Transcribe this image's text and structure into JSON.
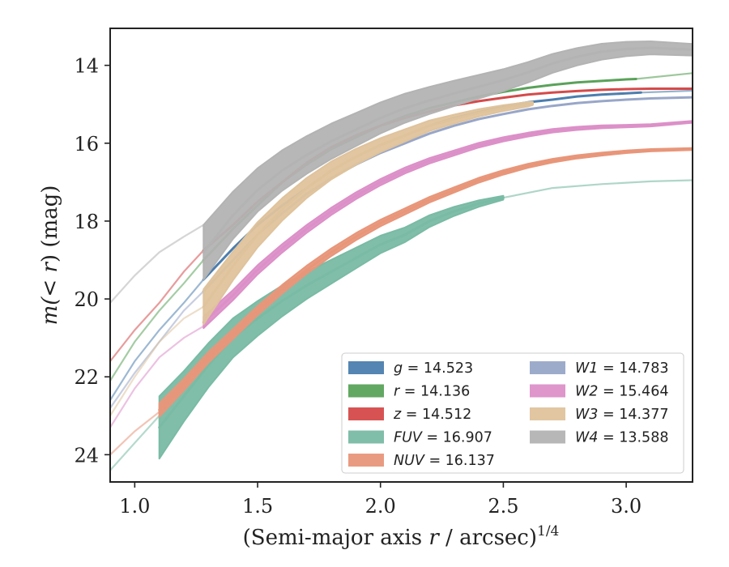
{
  "chart_data": {
    "type": "line",
    "xlabel": "(Semi-major axis r / arcsec)^1/4",
    "ylabel": "m(< r) (mag)",
    "xlim": [
      0.9,
      3.27
    ],
    "ylim": [
      24.7,
      13.05
    ],
    "y_inverted": true,
    "xticks": [
      "1.0",
      "1.5",
      "2.0",
      "2.5",
      "3.0"
    ],
    "yticks": [
      "14",
      "16",
      "18",
      "20",
      "22",
      "24"
    ],
    "legend_position": "lower-right",
    "legend_columns": 2,
    "series": [
      {
        "name": "g = 14.523",
        "band": "g",
        "mag_label": "14.523",
        "color": "#4c7eae",
        "faint": [
          [
            0.9,
            22.6
          ],
          [
            1.0,
            21.6
          ],
          [
            1.1,
            20.8
          ],
          [
            1.2,
            20.1
          ],
          [
            1.28,
            19.5
          ]
        ],
        "strong": [
          [
            1.28,
            19.5
          ],
          [
            1.4,
            18.7
          ],
          [
            1.5,
            18.1
          ],
          [
            1.6,
            17.6
          ],
          [
            1.7,
            17.15
          ],
          [
            1.8,
            16.7
          ],
          [
            1.9,
            16.35
          ],
          [
            2.0,
            16.05
          ],
          [
            2.1,
            15.8
          ],
          [
            2.2,
            15.55
          ],
          [
            2.3,
            15.35
          ],
          [
            2.4,
            15.2
          ],
          [
            2.5,
            15.05
          ],
          [
            2.6,
            14.95
          ],
          [
            2.7,
            14.88
          ],
          [
            2.8,
            14.8
          ],
          [
            2.9,
            14.75
          ],
          [
            3.0,
            14.72
          ],
          [
            3.06,
            14.7
          ]
        ],
        "faint_tail": [
          [
            3.06,
            14.7
          ],
          [
            3.27,
            14.65
          ]
        ],
        "band_width": [
          0.0,
          0.0
        ]
      },
      {
        "name": "r = 14.136",
        "band": "r",
        "mag_label": "14.136",
        "color": "#5aa25a",
        "faint": [
          [
            0.9,
            22.1
          ],
          [
            1.0,
            21.1
          ],
          [
            1.1,
            20.3
          ],
          [
            1.2,
            19.6
          ],
          [
            1.28,
            19.0
          ]
        ],
        "strong": [
          [
            1.28,
            19.0
          ],
          [
            1.4,
            18.2
          ],
          [
            1.5,
            17.6
          ],
          [
            1.6,
            17.0
          ],
          [
            1.7,
            16.55
          ],
          [
            1.8,
            16.15
          ],
          [
            1.9,
            15.85
          ],
          [
            2.0,
            15.55
          ],
          [
            2.1,
            15.3
          ],
          [
            2.2,
            15.1
          ],
          [
            2.3,
            14.95
          ],
          [
            2.4,
            14.8
          ],
          [
            2.5,
            14.68
          ],
          [
            2.6,
            14.58
          ],
          [
            2.7,
            14.5
          ],
          [
            2.8,
            14.44
          ],
          [
            2.9,
            14.4
          ],
          [
            3.0,
            14.36
          ],
          [
            3.04,
            14.35
          ]
        ],
        "faint_tail": [
          [
            3.04,
            14.35
          ],
          [
            3.27,
            14.2
          ]
        ],
        "band_width": [
          0.0,
          0.0
        ]
      },
      {
        "name": "z = 14.512",
        "band": "z",
        "mag_label": "14.512",
        "color": "#d54a4a",
        "faint": [
          [
            0.9,
            21.6
          ],
          [
            1.0,
            20.8
          ],
          [
            1.1,
            20.1
          ],
          [
            1.2,
            19.3
          ],
          [
            1.28,
            18.75
          ]
        ],
        "strong": [
          [
            1.28,
            18.75
          ],
          [
            1.4,
            18.1
          ],
          [
            1.5,
            17.5
          ],
          [
            1.6,
            17.0
          ],
          [
            1.7,
            16.5
          ],
          [
            1.8,
            16.1
          ],
          [
            1.9,
            15.8
          ],
          [
            2.0,
            15.55
          ],
          [
            2.1,
            15.35
          ],
          [
            2.2,
            15.18
          ],
          [
            2.3,
            15.03
          ],
          [
            2.4,
            14.92
          ],
          [
            2.5,
            14.83
          ],
          [
            2.6,
            14.75
          ],
          [
            2.7,
            14.7
          ],
          [
            2.8,
            14.66
          ],
          [
            2.9,
            14.63
          ],
          [
            3.0,
            14.61
          ],
          [
            3.1,
            14.6
          ],
          [
            3.27,
            14.6
          ]
        ],
        "faint_tail": [],
        "band_width": [
          0.0,
          0.0
        ]
      },
      {
        "name": "FUV = 16.907",
        "band": "FUV",
        "mag_label": "16.907",
        "color": "#79bba4",
        "faint": [
          [
            0.9,
            24.4
          ],
          [
            1.0,
            23.7
          ],
          [
            1.1,
            23.0
          ]
        ],
        "strong": [
          [
            1.1,
            23.3
          ],
          [
            1.2,
            22.5
          ],
          [
            1.3,
            21.7
          ],
          [
            1.4,
            21.0
          ],
          [
            1.5,
            20.5
          ],
          [
            1.6,
            20.05
          ],
          [
            1.7,
            19.65
          ],
          [
            1.8,
            19.3
          ],
          [
            1.9,
            18.95
          ],
          [
            2.0,
            18.6
          ],
          [
            2.1,
            18.35
          ],
          [
            2.2,
            18.0
          ],
          [
            2.3,
            17.75
          ],
          [
            2.4,
            17.55
          ],
          [
            2.5,
            17.4
          ]
        ],
        "faint_tail": [
          [
            2.5,
            17.4
          ],
          [
            2.7,
            17.15
          ],
          [
            2.9,
            17.05
          ],
          [
            3.1,
            16.98
          ],
          [
            3.27,
            16.95
          ]
        ],
        "band_width": [
          1.6,
          0.1
        ]
      },
      {
        "name": "NUV = 16.137",
        "band": "NUV",
        "mag_label": "16.137",
        "color": "#e8967a",
        "faint": [
          [
            0.9,
            24.0
          ],
          [
            1.0,
            23.4
          ],
          [
            1.1,
            22.9
          ]
        ],
        "strong": [
          [
            1.1,
            22.85
          ],
          [
            1.2,
            22.2
          ],
          [
            1.3,
            21.5
          ],
          [
            1.4,
            20.9
          ],
          [
            1.5,
            20.3
          ],
          [
            1.6,
            19.75
          ],
          [
            1.7,
            19.25
          ],
          [
            1.8,
            18.8
          ],
          [
            1.9,
            18.4
          ],
          [
            2.0,
            18.05
          ],
          [
            2.1,
            17.75
          ],
          [
            2.2,
            17.45
          ],
          [
            2.3,
            17.2
          ],
          [
            2.4,
            16.95
          ],
          [
            2.5,
            16.75
          ],
          [
            2.6,
            16.58
          ],
          [
            2.7,
            16.45
          ],
          [
            2.8,
            16.35
          ],
          [
            2.9,
            16.28
          ],
          [
            3.0,
            16.22
          ],
          [
            3.1,
            16.18
          ],
          [
            3.27,
            16.15
          ]
        ],
        "faint_tail": [],
        "band_width": [
          0.35,
          0.05
        ]
      },
      {
        "name": "W1 = 14.783",
        "band": "W1",
        "mag_label": "14.783",
        "color": "#98a6c8",
        "faint": [
          [
            0.9,
            22.8
          ],
          [
            1.0,
            21.9
          ],
          [
            1.1,
            21.1
          ],
          [
            1.2,
            20.3
          ],
          [
            1.28,
            19.8
          ]
        ],
        "strong": [
          [
            1.28,
            19.8
          ],
          [
            1.4,
            19.0
          ],
          [
            1.5,
            18.35
          ],
          [
            1.6,
            17.8
          ],
          [
            1.7,
            17.3
          ],
          [
            1.8,
            16.9
          ],
          [
            1.9,
            16.55
          ],
          [
            2.0,
            16.25
          ],
          [
            2.1,
            16.0
          ],
          [
            2.2,
            15.75
          ],
          [
            2.3,
            15.55
          ],
          [
            2.4,
            15.38
          ],
          [
            2.5,
            15.25
          ],
          [
            2.6,
            15.13
          ],
          [
            2.7,
            15.04
          ],
          [
            2.8,
            14.97
          ],
          [
            2.9,
            14.92
          ],
          [
            3.0,
            14.88
          ],
          [
            3.1,
            14.85
          ],
          [
            3.27,
            14.82
          ]
        ],
        "faint_tail": [],
        "band_width": [
          0.0,
          0.0
        ]
      },
      {
        "name": "W2 = 15.464",
        "band": "W2",
        "mag_label": "15.464",
        "color": "#dc90c8",
        "faint": [
          [
            0.9,
            23.3
          ],
          [
            1.0,
            22.3
          ],
          [
            1.1,
            21.5
          ],
          [
            1.2,
            21.0
          ],
          [
            1.28,
            20.7
          ]
        ],
        "strong": [
          [
            1.28,
            20.6
          ],
          [
            1.4,
            19.9
          ],
          [
            1.5,
            19.25
          ],
          [
            1.6,
            18.7
          ],
          [
            1.7,
            18.2
          ],
          [
            1.8,
            17.75
          ],
          [
            1.9,
            17.35
          ],
          [
            2.0,
            17.0
          ],
          [
            2.1,
            16.7
          ],
          [
            2.2,
            16.45
          ],
          [
            2.3,
            16.25
          ],
          [
            2.4,
            16.05
          ],
          [
            2.5,
            15.9
          ],
          [
            2.6,
            15.78
          ],
          [
            2.7,
            15.68
          ],
          [
            2.8,
            15.62
          ],
          [
            2.9,
            15.58
          ],
          [
            3.0,
            15.56
          ],
          [
            3.1,
            15.54
          ],
          [
            3.27,
            15.45
          ]
        ],
        "faint_tail": [],
        "band_width": [
          0.3,
          0.05
        ]
      },
      {
        "name": "W3 = 14.377",
        "band": "W3",
        "mag_label": "14.377",
        "color": "#dfc39c",
        "faint": [
          [
            0.9,
            23.0
          ],
          [
            1.0,
            22.0
          ],
          [
            1.1,
            21.1
          ],
          [
            1.2,
            20.5
          ],
          [
            1.28,
            20.2
          ]
        ],
        "strong": [
          [
            1.28,
            20.2
          ],
          [
            1.4,
            19.15
          ],
          [
            1.5,
            18.35
          ],
          [
            1.6,
            17.7
          ],
          [
            1.7,
            17.15
          ],
          [
            1.8,
            16.7
          ],
          [
            1.9,
            16.35
          ],
          [
            2.0,
            16.05
          ],
          [
            2.1,
            15.8
          ],
          [
            2.2,
            15.55
          ],
          [
            2.3,
            15.38
          ],
          [
            2.4,
            15.22
          ],
          [
            2.5,
            15.1
          ],
          [
            2.6,
            15.0
          ],
          [
            2.62,
            14.98
          ]
        ],
        "faint_tail": [],
        "band_width": [
          0.9,
          0.08
        ]
      },
      {
        "name": "W4 = 13.588",
        "band": "W4",
        "mag_label": "13.588",
        "color": "#b3b3b3",
        "faint": [
          [
            0.9,
            20.1
          ],
          [
            1.0,
            19.4
          ],
          [
            1.1,
            18.8
          ],
          [
            1.2,
            18.4
          ],
          [
            1.28,
            18.1
          ]
        ],
        "strong": [
          [
            1.28,
            18.8
          ],
          [
            1.4,
            17.85
          ],
          [
            1.5,
            17.2
          ],
          [
            1.6,
            16.7
          ],
          [
            1.7,
            16.3
          ],
          [
            1.8,
            15.95
          ],
          [
            1.9,
            15.65
          ],
          [
            2.0,
            15.35
          ],
          [
            2.1,
            15.1
          ],
          [
            2.2,
            14.9
          ],
          [
            2.3,
            14.72
          ],
          [
            2.4,
            14.55
          ],
          [
            2.5,
            14.38
          ],
          [
            2.6,
            14.18
          ],
          [
            2.7,
            13.95
          ],
          [
            2.8,
            13.78
          ],
          [
            2.9,
            13.65
          ],
          [
            3.0,
            13.58
          ],
          [
            3.1,
            13.55
          ],
          [
            3.27,
            13.6
          ]
        ],
        "faint_tail": [],
        "band_width": [
          1.4,
          0.3
        ]
      }
    ]
  }
}
